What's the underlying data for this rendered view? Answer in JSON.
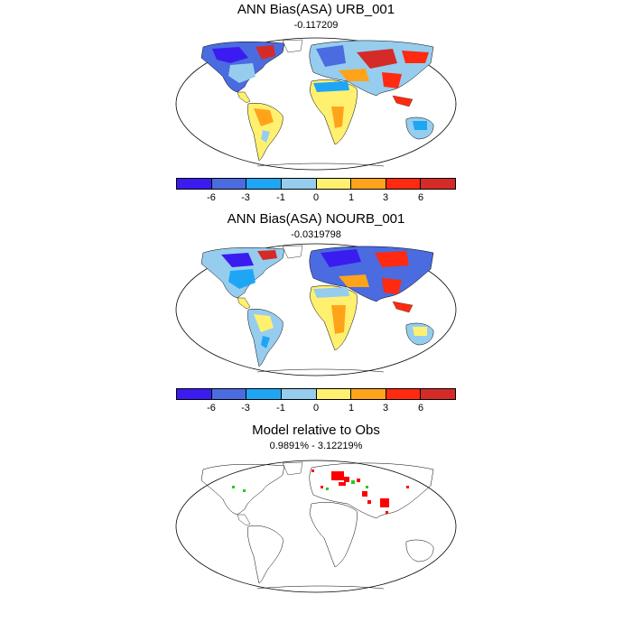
{
  "panels": [
    {
      "title": "ANN Bias(ASA) URB_001",
      "subtitle": "-0.117209"
    },
    {
      "title": "ANN Bias(ASA) NOURB_001",
      "subtitle": "-0.0319798"
    },
    {
      "title": "Model relative to Obs",
      "subtitle": "0.9891% - 3.12219%"
    }
  ],
  "colorbar": {
    "colors": [
      "#3a1cf0",
      "#4b6be0",
      "#1ea6f5",
      "#96cdee",
      "#fff070",
      "#ffa41a",
      "#ff2a10",
      "#d42b28"
    ],
    "labels": [
      "-6",
      "-3",
      "-1",
      "0",
      "1",
      "3",
      "6"
    ]
  },
  "legend_colors": {
    "higher": "#ff0000",
    "lower": "#22cc22"
  }
}
